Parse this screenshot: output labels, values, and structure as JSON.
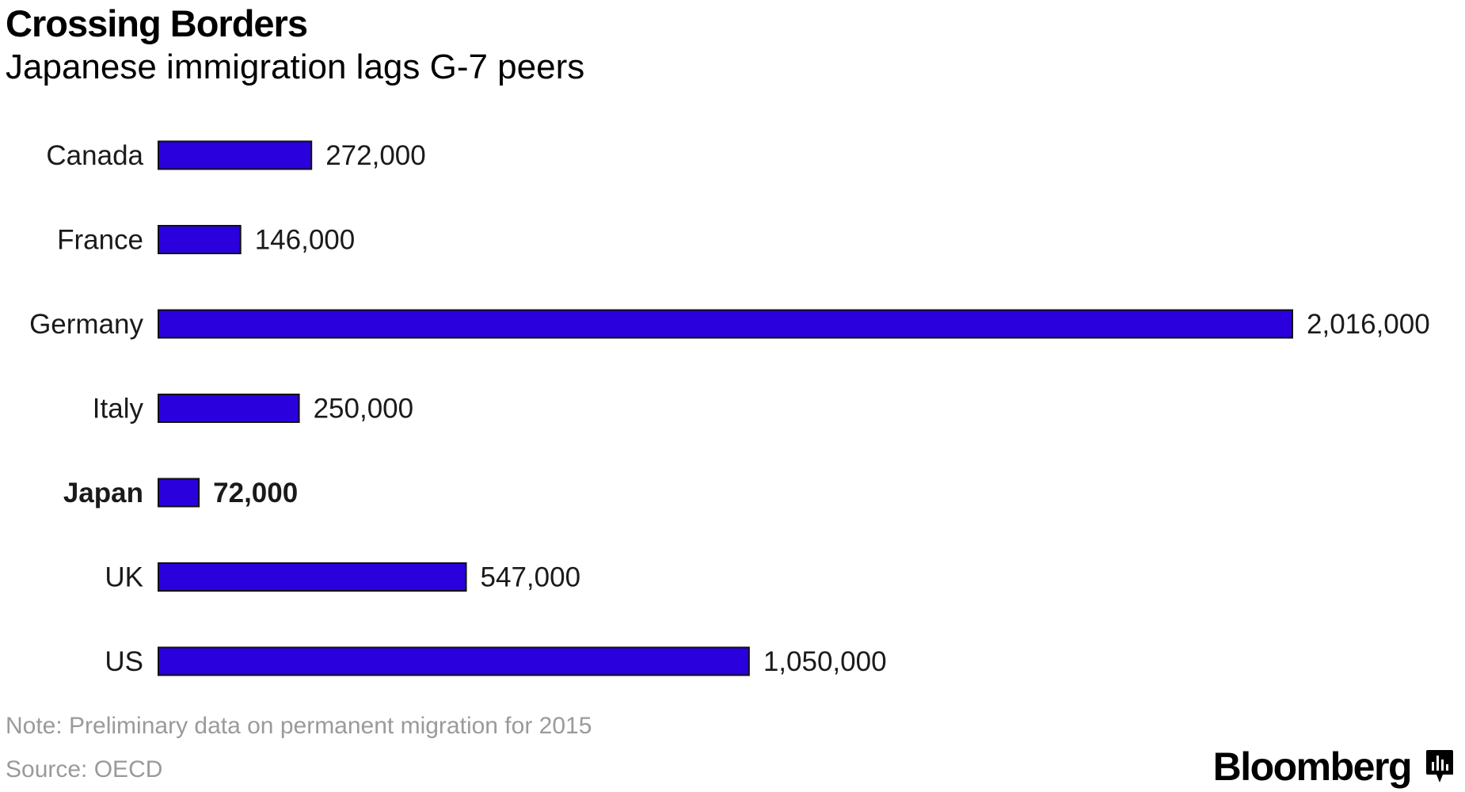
{
  "header": {
    "title": "Crossing Borders",
    "subtitle": "Japanese immigration lags G-7 peers"
  },
  "footer": {
    "note": "Note: Preliminary data on permanent migration for 2015",
    "source": "Source: OECD",
    "brand": "Bloomberg"
  },
  "colors": {
    "bar": "#2a00dc",
    "bar_outline": "#111111",
    "text": "#1a1a1a",
    "muted": "#9a9a9a"
  },
  "chart_data": {
    "type": "bar",
    "orientation": "horizontal",
    "title": "Crossing Borders",
    "subtitle": "Japanese immigration lags G-7 peers",
    "categories": [
      "Canada",
      "France",
      "Germany",
      "Italy",
      "Japan",
      "UK",
      "US"
    ],
    "values": [
      272000,
      146000,
      2016000,
      250000,
      72000,
      547000,
      1050000
    ],
    "value_labels": [
      "272,000",
      "146,000",
      "2,016,000",
      "250,000",
      "72,000",
      "547,000",
      "1,050,000"
    ],
    "highlight": "Japan",
    "xlim": [
      0,
      2016000
    ],
    "grid": false,
    "legend": "none"
  }
}
